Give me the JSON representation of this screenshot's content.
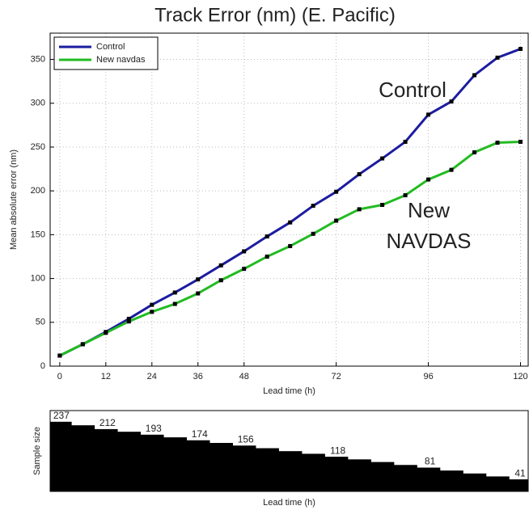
{
  "chart_data": [
    {
      "type": "line",
      "title": "Track Error (nm) (E. Pacific)",
      "x_label": "Lead time (h)",
      "y_label": "Mean absolute error (nm)",
      "x": [
        0,
        6,
        12,
        18,
        24,
        30,
        36,
        42,
        48,
        54,
        60,
        66,
        72,
        78,
        84,
        90,
        96,
        102,
        108,
        114,
        120
      ],
      "series": [
        {
          "name": "Control",
          "color": "#1c1ca0",
          "values": [
            12,
            25,
            39,
            54,
            70,
            84,
            99,
            115,
            131,
            148,
            164,
            183,
            199,
            219,
            237,
            256,
            287,
            302,
            332,
            352,
            362
          ]
        },
        {
          "name": "New navdas",
          "color": "#22bb22",
          "values": [
            12,
            25,
            38,
            51,
            62,
            71,
            83,
            98,
            111,
            125,
            137,
            151,
            166,
            179,
            184,
            195,
            213,
            224,
            244,
            255,
            256
          ]
        }
      ],
      "annotations": [
        {
          "lines": [
            "Control"
          ],
          "color": "#1c1ca0"
        },
        {
          "lines": [
            "New",
            "NAVDAS"
          ],
          "color": "#1e7a1e"
        }
      ],
      "xlim": [
        -2.5,
        122
      ],
      "ylim": [
        0,
        380
      ],
      "xticks": [
        0,
        12,
        24,
        36,
        48,
        72,
        96,
        120
      ],
      "yticks": [
        0,
        50,
        100,
        150,
        200,
        250,
        300,
        350
      ],
      "grid": true,
      "legend": "upper-left",
      "marker_color": "#000000"
    },
    {
      "type": "bar",
      "x_label": "Lead time (h)",
      "y_label": "Sample size",
      "x": [
        0,
        6,
        12,
        18,
        24,
        30,
        36,
        42,
        48,
        54,
        60,
        66,
        72,
        78,
        84,
        90,
        96,
        102,
        108,
        114,
        120
      ],
      "values": [
        237,
        225,
        212,
        203,
        193,
        184,
        174,
        165,
        156,
        147,
        137,
        128,
        118,
        109,
        100,
        90,
        81,
        71,
        61,
        51,
        41
      ],
      "value_labels": [
        "237",
        null,
        "212",
        null,
        "193",
        null,
        "174",
        null,
        "156",
        null,
        null,
        null,
        "118",
        null,
        null,
        null,
        "81",
        null,
        null,
        null,
        "41"
      ],
      "color": "#000000",
      "xlim": [
        -2.5,
        122
      ],
      "ylim": [
        0,
        275
      ]
    }
  ]
}
